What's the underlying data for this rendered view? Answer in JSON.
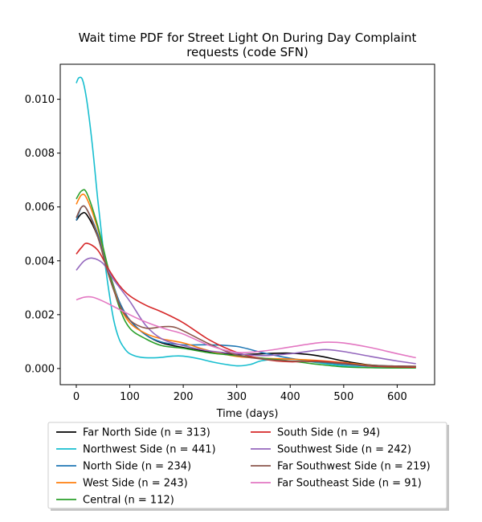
{
  "chart_data": {
    "type": "line",
    "title_lines": [
      "Wait time PDF for Street Light On During Day Complaint",
      "requests (code SFN)"
    ],
    "xlabel": "Time (days)",
    "ylabel": "",
    "xlim": [
      -30,
      670
    ],
    "ylim": [
      -0.0006,
      0.0113
    ],
    "xticks": [
      0,
      100,
      200,
      300,
      400,
      500,
      600
    ],
    "yticks": [
      0.0,
      0.002,
      0.004,
      0.006,
      0.008,
      0.01
    ],
    "ytick_labels": [
      "0.000",
      "0.002",
      "0.004",
      "0.006",
      "0.008",
      "0.010"
    ],
    "grid": false,
    "legend_placement": "below plot, two columns",
    "series": [
      {
        "name": "Far North Side (n = 313)",
        "color": "#000000",
        "points": [
          [
            0,
            0.0055
          ],
          [
            10,
            0.00575
          ],
          [
            20,
            0.0057
          ],
          [
            40,
            0.0049
          ],
          [
            60,
            0.0036
          ],
          [
            80,
            0.0025
          ],
          [
            100,
            0.0018
          ],
          [
            130,
            0.00125
          ],
          [
            160,
            0.00095
          ],
          [
            200,
            0.00078
          ],
          [
            250,
            0.00062
          ],
          [
            300,
            0.00052
          ],
          [
            350,
            0.00055
          ],
          [
            400,
            0.00057
          ],
          [
            450,
            0.00048
          ],
          [
            500,
            0.00028
          ],
          [
            550,
            0.00013
          ],
          [
            600,
            9e-05
          ],
          [
            635,
            8e-05
          ]
        ]
      },
      {
        "name": "Northwest Side (n = 441)",
        "color": "#17becf",
        "points": [
          [
            0,
            0.0106
          ],
          [
            5,
            0.0108
          ],
          [
            12,
            0.0107
          ],
          [
            20,
            0.0099
          ],
          [
            30,
            0.0083
          ],
          [
            40,
            0.0063
          ],
          [
            50,
            0.0045
          ],
          [
            60,
            0.003
          ],
          [
            70,
            0.0018
          ],
          [
            80,
            0.0011
          ],
          [
            90,
            0.00075
          ],
          [
            100,
            0.00055
          ],
          [
            120,
            0.00042
          ],
          [
            150,
            0.0004
          ],
          [
            180,
            0.00046
          ],
          [
            200,
            0.00046
          ],
          [
            230,
            0.00036
          ],
          [
            260,
            0.00022
          ],
          [
            300,
            0.0001
          ],
          [
            325,
            0.00015
          ],
          [
            350,
            0.0003
          ],
          [
            400,
            0.00035
          ],
          [
            450,
            0.00022
          ],
          [
            500,
            0.0001
          ],
          [
            550,
            4e-05
          ],
          [
            600,
            2e-05
          ],
          [
            635,
            2e-05
          ]
        ]
      },
      {
        "name": "North Side (n = 234)",
        "color": "#1f77b4",
        "points": [
          [
            0,
            0.0055
          ],
          [
            10,
            0.006
          ],
          [
            20,
            0.0059
          ],
          [
            40,
            0.005
          ],
          [
            60,
            0.0037
          ],
          [
            80,
            0.0025
          ],
          [
            100,
            0.0018
          ],
          [
            130,
            0.00125
          ],
          [
            160,
            0.00098
          ],
          [
            200,
            0.00088
          ],
          [
            250,
            0.00088
          ],
          [
            300,
            0.00082
          ],
          [
            350,
            0.00058
          ],
          [
            400,
            0.00038
          ],
          [
            450,
            0.00025
          ],
          [
            500,
            0.00015
          ],
          [
            550,
            9e-05
          ],
          [
            600,
            7e-05
          ],
          [
            635,
            6e-05
          ]
        ]
      },
      {
        "name": "West Side (n = 243)",
        "color": "#ff7f0e",
        "points": [
          [
            0,
            0.0061
          ],
          [
            10,
            0.00645
          ],
          [
            20,
            0.0063
          ],
          [
            40,
            0.0052
          ],
          [
            60,
            0.0037
          ],
          [
            80,
            0.0024
          ],
          [
            100,
            0.0017
          ],
          [
            130,
            0.0013
          ],
          [
            160,
            0.0011
          ],
          [
            200,
            0.00095
          ],
          [
            250,
            0.00065
          ],
          [
            300,
            0.00045
          ],
          [
            350,
            0.00038
          ],
          [
            400,
            0.00035
          ],
          [
            450,
            0.0003
          ],
          [
            500,
            0.00022
          ],
          [
            550,
            0.00012
          ],
          [
            600,
            6e-05
          ],
          [
            635,
            5e-05
          ]
        ]
      },
      {
        "name": "Central (n = 112)",
        "color": "#2ca02c",
        "points": [
          [
            0,
            0.0063
          ],
          [
            10,
            0.0066
          ],
          [
            20,
            0.0065
          ],
          [
            40,
            0.0053
          ],
          [
            60,
            0.0037
          ],
          [
            80,
            0.0023
          ],
          [
            100,
            0.0015
          ],
          [
            130,
            0.0011
          ],
          [
            160,
            0.00085
          ],
          [
            200,
            0.00075
          ],
          [
            250,
            0.00058
          ],
          [
            300,
            0.00048
          ],
          [
            350,
            0.00038
          ],
          [
            400,
            0.00028
          ],
          [
            450,
            0.00016
          ],
          [
            500,
            6e-05
          ],
          [
            550,
            3e-05
          ],
          [
            600,
            2e-05
          ],
          [
            635,
            2e-05
          ]
        ]
      },
      {
        "name": "South Side (n = 94)",
        "color": "#d62728",
        "points": [
          [
            0,
            0.00425
          ],
          [
            10,
            0.0045
          ],
          [
            20,
            0.00465
          ],
          [
            40,
            0.0044
          ],
          [
            60,
            0.0037
          ],
          [
            80,
            0.0031
          ],
          [
            100,
            0.0027
          ],
          [
            130,
            0.00235
          ],
          [
            160,
            0.0021
          ],
          [
            200,
            0.0017
          ],
          [
            250,
            0.00105
          ],
          [
            300,
            0.0006
          ],
          [
            350,
            0.00035
          ],
          [
            400,
            0.00025
          ],
          [
            450,
            0.00028
          ],
          [
            500,
            0.0002
          ],
          [
            550,
            9e-05
          ],
          [
            600,
            6e-05
          ],
          [
            635,
            5e-05
          ]
        ]
      },
      {
        "name": "Southwest Side (n = 242)",
        "color": "#9467bd",
        "points": [
          [
            0,
            0.00365
          ],
          [
            15,
            0.004
          ],
          [
            30,
            0.0041
          ],
          [
            50,
            0.0039
          ],
          [
            70,
            0.0033
          ],
          [
            100,
            0.0025
          ],
          [
            130,
            0.0016
          ],
          [
            160,
            0.0011
          ],
          [
            200,
            0.00085
          ],
          [
            250,
            0.00065
          ],
          [
            300,
            0.00055
          ],
          [
            350,
            0.00048
          ],
          [
            400,
            0.00055
          ],
          [
            450,
            0.00068
          ],
          [
            470,
            0.0007
          ],
          [
            500,
            0.00063
          ],
          [
            550,
            0.00045
          ],
          [
            600,
            0.00028
          ],
          [
            635,
            0.00018
          ]
        ]
      },
      {
        "name": "Far Southwest Side (n = 219)",
        "color": "#8c564b",
        "points": [
          [
            0,
            0.0056
          ],
          [
            10,
            0.006
          ],
          [
            20,
            0.0059
          ],
          [
            40,
            0.0049
          ],
          [
            60,
            0.0035
          ],
          [
            80,
            0.0024
          ],
          [
            100,
            0.0018
          ],
          [
            130,
            0.0015
          ],
          [
            160,
            0.00155
          ],
          [
            180,
            0.00155
          ],
          [
            200,
            0.0014
          ],
          [
            250,
            0.0009
          ],
          [
            300,
            0.0005
          ],
          [
            350,
            0.00035
          ],
          [
            400,
            0.00028
          ],
          [
            450,
            0.00025
          ],
          [
            500,
            0.00018
          ],
          [
            550,
            0.00011
          ],
          [
            600,
            9e-05
          ],
          [
            635,
            8e-05
          ]
        ]
      },
      {
        "name": "Far Southeast Side (n = 91)",
        "color": "#e377c2",
        "points": [
          [
            0,
            0.00255
          ],
          [
            15,
            0.00265
          ],
          [
            30,
            0.00265
          ],
          [
            50,
            0.0025
          ],
          [
            80,
            0.0022
          ],
          [
            110,
            0.0019
          ],
          [
            140,
            0.00165
          ],
          [
            170,
            0.00145
          ],
          [
            200,
            0.00128
          ],
          [
            250,
            0.00085
          ],
          [
            300,
            0.0006
          ],
          [
            350,
            0.00065
          ],
          [
            400,
            0.0008
          ],
          [
            450,
            0.00095
          ],
          [
            470,
            0.00098
          ],
          [
            500,
            0.00095
          ],
          [
            550,
            0.00078
          ],
          [
            600,
            0.00055
          ],
          [
            635,
            0.0004
          ]
        ]
      }
    ]
  }
}
